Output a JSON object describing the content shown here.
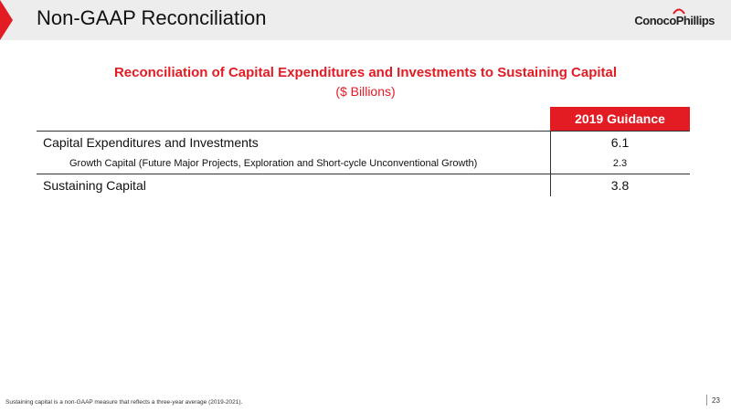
{
  "header": {
    "title": "Non-GAAP Reconciliation",
    "logo_text": "ConocoPhillips"
  },
  "table": {
    "title": "Reconciliation of Capital Expenditures and Investments to Sustaining Capital",
    "subtitle": "($ Billions)",
    "column_header": "2019 Guidance",
    "rows": [
      {
        "label": "Capital Expenditures and Investments",
        "value": "6.1"
      },
      {
        "label": "Growth Capital (Future Major Projects, Exploration and Short-cycle Unconventional Growth)",
        "value": "2.3"
      },
      {
        "label": "Sustaining Capital",
        "value": "3.8"
      }
    ]
  },
  "footer": {
    "note": "Sustaining capital is a non-GAAP measure that reflects a three-year average (2019-2021).",
    "page_number": "23"
  },
  "colors": {
    "accent": "#e31b23",
    "header_bg": "#ededed"
  }
}
